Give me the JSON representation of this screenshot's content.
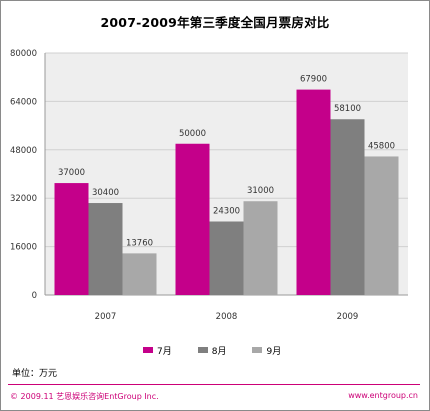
{
  "colors": {
    "series_7": "#c4008a",
    "series_8": "#7f7f7f",
    "series_9": "#a8a8a8",
    "plot_bg": "#eeeeee",
    "accent": "#cc0077"
  },
  "chart_data": {
    "type": "bar",
    "title": "2007-2009年第三季度全国月票房对比",
    "categories": [
      "2007",
      "2008",
      "2009"
    ],
    "series": [
      {
        "name": "7月",
        "values": [
          37000,
          50000,
          67900
        ]
      },
      {
        "name": "8月",
        "values": [
          30400,
          24300,
          58100
        ]
      },
      {
        "name": "9月",
        "values": [
          13760,
          31000,
          45800
        ]
      }
    ],
    "ylim": [
      0,
      80000
    ],
    "yticks": [
      "0",
      "16000",
      "32000",
      "48000",
      "64000",
      "80000"
    ],
    "grid": true,
    "legend": "bottom"
  },
  "unit_label": "单位：万元",
  "footer": {
    "copyright": "© 2009.11 艺恩娱乐咨询EntGroup Inc.",
    "website": "www.entgroup.cn"
  }
}
